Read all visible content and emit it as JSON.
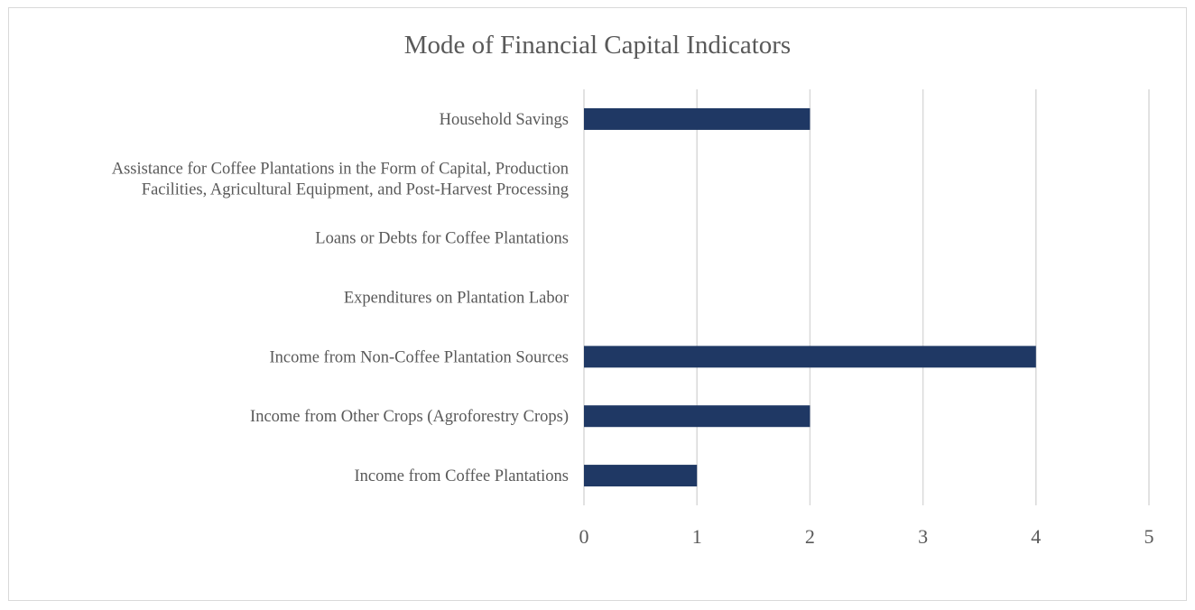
{
  "chart_data": {
    "type": "bar",
    "orientation": "horizontal",
    "title": "Mode of Financial Capital Indicators",
    "xlabel": "",
    "ylabel": "",
    "categories": [
      "Income from Coffee Plantations",
      "Income from Other Crops (Agroforestry Crops)",
      "Income from Non-Coffee Plantation Sources",
      "Expenditures on Plantation Labor",
      "Loans or Debts for Coffee Plantations",
      "Assistance for Coffee Plantations in the Form of Capital, Production Facilities, Agricultural Equipment, and Post-Harvest Processing",
      "Household Savings"
    ],
    "category_lines": [
      [
        "Income from Coffee Plantations"
      ],
      [
        "Income from Other Crops (Agroforestry Crops)"
      ],
      [
        "Income from Non-Coffee Plantation Sources"
      ],
      [
        "Expenditures on Plantation Labor"
      ],
      [
        "Loans or Debts for Coffee Plantations"
      ],
      [
        "Assistance for Coffee Plantations in the Form of Capital, Production",
        "Facilities, Agricultural Equipment, and Post-Harvest Processing"
      ],
      [
        "Household Savings"
      ]
    ],
    "values": [
      1,
      2,
      4,
      0,
      0,
      0,
      2
    ],
    "xlim": [
      0,
      5
    ],
    "xticks": [
      "0",
      "1",
      "2",
      "3",
      "4",
      "5"
    ],
    "grid": "vertical",
    "legend": "none",
    "bar_color": "#1f3864",
    "grid_color": "#d9d9d9",
    "text_color": "#595959"
  }
}
